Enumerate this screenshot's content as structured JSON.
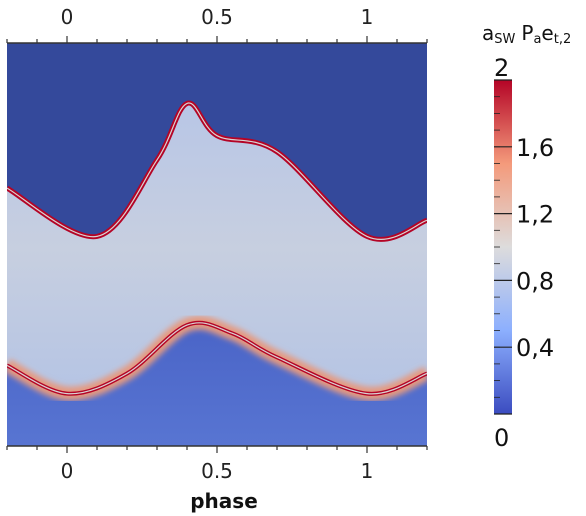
{
  "chart_data": {
    "type": "heatmap",
    "title": "",
    "xlabel": "phase",
    "ylabel": "",
    "xlim": [
      -0.2,
      1.2
    ],
    "x_ticks": [
      "0",
      "0.5",
      "1"
    ],
    "x_tick_values": [
      0,
      0.5,
      1
    ],
    "x_axis_top": true,
    "x_axis_bottom": true,
    "colorbar": {
      "label_main": "a",
      "label_main_sub": "SW",
      "label_p": "P",
      "label_p_sub": "a",
      "label_e": "e",
      "label_e_sub": "t,2",
      "range": [
        0,
        2
      ],
      "ticks": [
        "2",
        "1,6",
        "1,2",
        "0,8",
        "0,4",
        "0"
      ],
      "tick_values": [
        2,
        1.6,
        1.2,
        0.8,
        0.4,
        0
      ],
      "colormap": "cool-to-warm (blue-white-red)"
    },
    "background_value": 0.1,
    "lower_region_value": 0.3,
    "band": {
      "core_value": 0.9,
      "edge_value": 2.0,
      "upper_boundary_fraction": [
        [
          -0.2,
          0.36
        ],
        [
          0.1,
          0.48
        ],
        [
          0.3,
          0.29
        ],
        [
          0.4,
          0.15
        ],
        [
          0.5,
          0.23
        ],
        [
          0.7,
          0.27
        ],
        [
          1.0,
          0.48
        ],
        [
          1.2,
          0.44
        ]
      ],
      "lower_boundary_fraction": [
        [
          -0.2,
          0.8
        ],
        [
          0.0,
          0.87
        ],
        [
          0.2,
          0.82
        ],
        [
          0.4,
          0.7
        ],
        [
          0.55,
          0.72
        ],
        [
          0.7,
          0.78
        ],
        [
          1.0,
          0.87
        ],
        [
          1.2,
          0.82
        ]
      ]
    }
  }
}
